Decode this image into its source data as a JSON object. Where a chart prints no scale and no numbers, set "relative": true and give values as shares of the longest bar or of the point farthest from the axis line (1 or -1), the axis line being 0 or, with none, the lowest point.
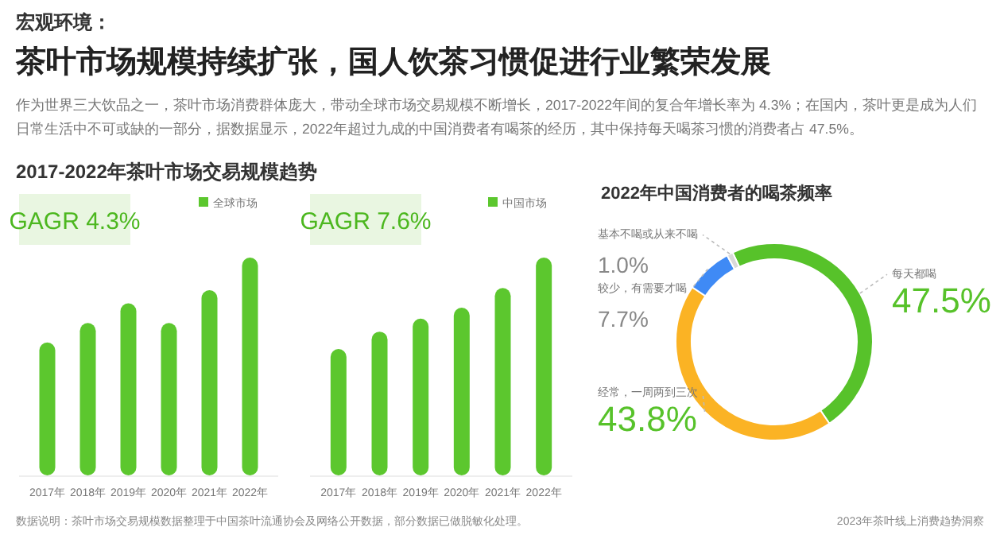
{
  "chart_data": [
    {
      "type": "other",
      "annotations": [
        "宏观环境：",
        "茶叶市场规模持续扩张，国人饮茶习惯促进行业繁荣发展",
        "作为世界三大饮品之一，茶叶市场消费群体庞大，带动全球市场交易规模不断增长，2017-2022年间的复合年增长率为 4.3%；在国内，茶叶更是成为人们日常生活中不可或缺的一部分，据数据显示，2022年超过九成的中国消费者有喝茶的经历，其中保持每天喝茶习惯的消费者占 47.5%。",
        "数据说明：茶叶市场交易规模数据整理于中国茶叶流通协会及网络公开数据，部分数据已做脱敏化处理。",
        "2023年茶叶线上消费趋势洞察"
      ]
    },
    {
      "type": "bar",
      "title": "2017-2022年茶叶市场交易规模趋势",
      "relative": true,
      "categories": [
        "2017年",
        "2018年",
        "2019年",
        "2020年",
        "2021年",
        "2022年"
      ],
      "legend": "top right",
      "annotations": [
        "GAGR 4.3%"
      ],
      "series": [
        {
          "name": "全球市场",
          "color": "#5cc72e",
          "values": [
            0.61,
            0.7,
            0.79,
            0.7,
            0.85,
            1
          ]
        }
      ]
    },
    {
      "type": "bar",
      "relative": true,
      "categories": [
        "2017年",
        "2018年",
        "2019年",
        "2020年",
        "2021年",
        "2022年"
      ],
      "legend": "top right",
      "annotations": [
        "GAGR 7.6%"
      ],
      "series": [
        {
          "name": "中国市场",
          "color": "#5cc72e",
          "values": [
            0.58,
            0.66,
            0.72,
            0.77,
            0.86,
            1
          ]
        }
      ]
    },
    {
      "type": "donut",
      "title": "2022年中国消费者的喝茶频率",
      "categories": [
        "每天都喝",
        "经常，一周两到三次",
        "较少，有需要才喝",
        "基本不喝或从来不喝"
      ],
      "values": [
        47.5,
        43.8,
        7.7,
        1.0
      ],
      "colors": [
        "#57c22a",
        "#fbb324",
        "#3f8af5",
        "#d9d9d9"
      ],
      "value_labels": [
        "47.5%",
        "43.8%",
        "7.7%",
        "1.0%"
      ]
    }
  ]
}
